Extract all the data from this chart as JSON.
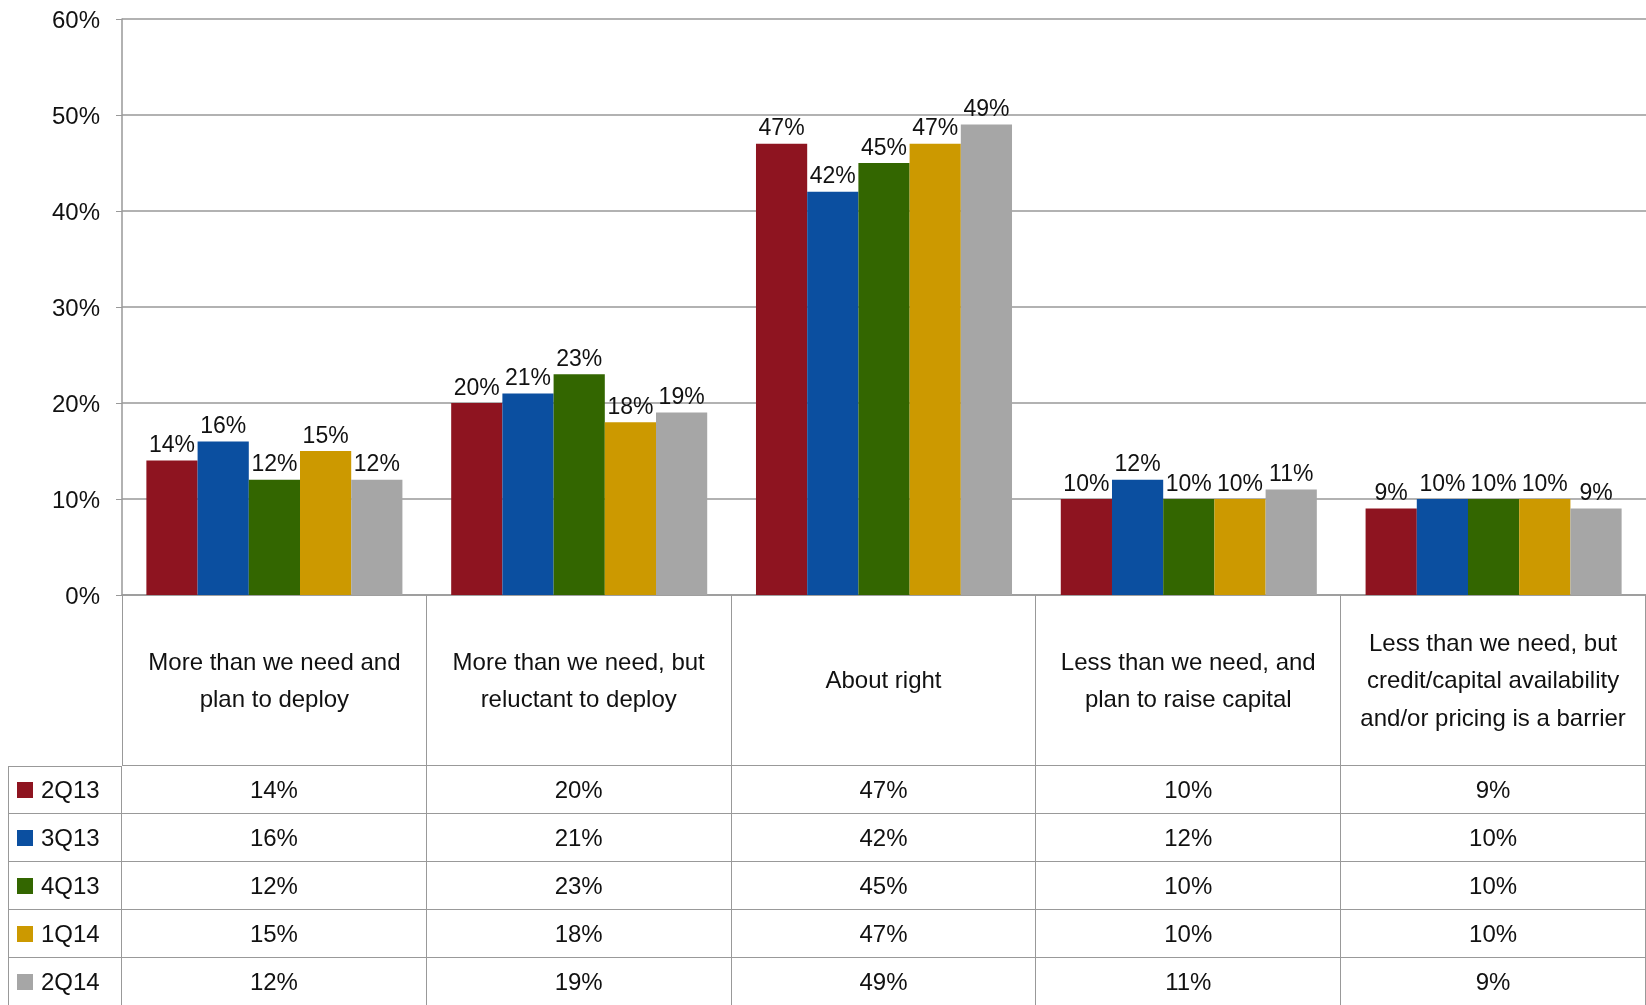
{
  "chart_data": {
    "type": "bar",
    "categories": [
      "More than we need and plan to deploy",
      "More than we need, but reluctant to deploy",
      "About right",
      "Less than we need, and plan to raise capital",
      "Less than we need, but credit/capital availability and/or pricing is a barrier"
    ],
    "series": [
      {
        "name": "2Q13",
        "color": "#8e1420",
        "values": [
          14,
          20,
          47,
          10,
          9
        ],
        "value_labels": [
          "14%",
          "20%",
          "47%",
          "10%",
          "9%"
        ]
      },
      {
        "name": "3Q13",
        "color": "#0b4fa0",
        "values": [
          16,
          21,
          42,
          12,
          10
        ],
        "value_labels": [
          "16%",
          "21%",
          "42%",
          "12%",
          "10%"
        ]
      },
      {
        "name": "4Q13",
        "color": "#336600",
        "values": [
          12,
          23,
          45,
          10,
          10
        ],
        "value_labels": [
          "12%",
          "23%",
          "45%",
          "10%",
          "10%"
        ]
      },
      {
        "name": "1Q14",
        "color": "#cc9900",
        "values": [
          15,
          18,
          47,
          10,
          10
        ],
        "value_labels": [
          "15%",
          "18%",
          "47%",
          "10%",
          "10%"
        ]
      },
      {
        "name": "2Q14",
        "color": "#a6a6a6",
        "values": [
          12,
          19,
          49,
          11,
          9
        ],
        "value_labels": [
          "12%",
          "19%",
          "49%",
          "11%",
          "9%"
        ]
      }
    ],
    "ylim": [
      0,
      60
    ],
    "yticks": [
      {
        "value": 0,
        "label": "0%"
      },
      {
        "value": 10,
        "label": "10%"
      },
      {
        "value": 20,
        "label": "20%"
      },
      {
        "value": 30,
        "label": "30%"
      },
      {
        "value": 40,
        "label": "40%"
      },
      {
        "value": 50,
        "label": "50%"
      },
      {
        "value": 60,
        "label": "60%"
      }
    ],
    "grid": "y",
    "legend": "bottom left"
  }
}
